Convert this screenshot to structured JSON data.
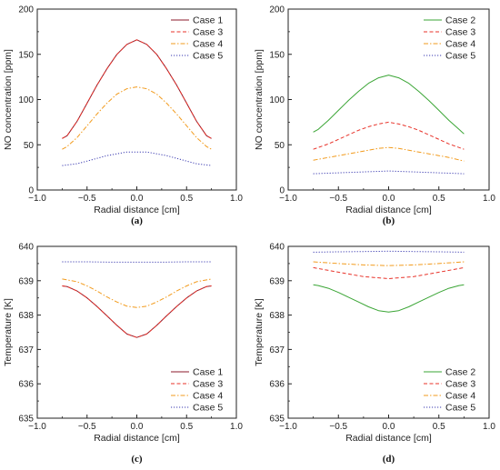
{
  "chart_data": [
    {
      "type": "line",
      "panel_label": "(a)",
      "xlabel": "Radial distance [cm]",
      "ylabel": "NO concentration [ppm]",
      "xlim": [
        -1.0,
        1.0
      ],
      "ylim": [
        0,
        200
      ],
      "xticks": [
        "−1.0",
        "−0.5",
        "0.0",
        "0.5",
        "1.0"
      ],
      "yticks": [
        "0",
        "50",
        "100",
        "150",
        "200"
      ],
      "legend_position": "top-right",
      "series": [
        {
          "name": "Case 1",
          "color": "#8b1a2b",
          "dash": "solid",
          "x": [
            -0.75,
            -0.7,
            -0.6,
            -0.5,
            -0.4,
            -0.3,
            -0.2,
            -0.1,
            0.0,
            0.1,
            0.2,
            0.3,
            0.4,
            0.5,
            0.6,
            0.7,
            0.75
          ],
          "y": [
            57,
            60,
            76,
            96,
            116,
            134,
            150,
            161,
            166,
            161,
            150,
            134,
            116,
            96,
            76,
            60,
            57
          ]
        },
        {
          "name": "Case 3",
          "color": "#e8332a",
          "dash": "dashed",
          "x": [
            -0.75,
            -0.7,
            -0.6,
            -0.5,
            -0.4,
            -0.3,
            -0.2,
            -0.1,
            0.0,
            0.1,
            0.2,
            0.3,
            0.4,
            0.5,
            0.6,
            0.7,
            0.75
          ],
          "y": [
            57,
            60,
            76,
            96,
            116,
            134,
            150,
            161,
            166,
            161,
            150,
            134,
            116,
            96,
            76,
            60,
            57
          ]
        },
        {
          "name": "Case 4",
          "color": "#f29b1d",
          "dash": "dashdot",
          "x": [
            -0.75,
            -0.7,
            -0.6,
            -0.5,
            -0.4,
            -0.3,
            -0.2,
            -0.1,
            0.0,
            0.1,
            0.2,
            0.3,
            0.4,
            0.5,
            0.6,
            0.7,
            0.75
          ],
          "y": [
            45,
            48,
            58,
            71,
            84,
            96,
            106,
            112,
            114,
            112,
            106,
            96,
            84,
            71,
            58,
            48,
            45
          ]
        },
        {
          "name": "Case 5",
          "color": "#3a3ab0",
          "dash": "dotted",
          "x": [
            -0.75,
            -0.6,
            -0.5,
            -0.4,
            -0.3,
            -0.2,
            -0.1,
            0.0,
            0.1,
            0.2,
            0.3,
            0.4,
            0.5,
            0.6,
            0.75
          ],
          "y": [
            27,
            29,
            32,
            35,
            38,
            40,
            42,
            42,
            42,
            40,
            38,
            35,
            32,
            29,
            27
          ]
        }
      ]
    },
    {
      "type": "line",
      "panel_label": "(b)",
      "xlabel": "Radial distance [cm]",
      "ylabel": "NO concentration [ppm]",
      "xlim": [
        -1.0,
        1.0
      ],
      "ylim": [
        0,
        200
      ],
      "xticks": [
        "−1.0",
        "−0.5",
        "0.0",
        "0.5",
        "1.0"
      ],
      "yticks": [
        "0",
        "50",
        "100",
        "150",
        "200"
      ],
      "legend_position": "top-right",
      "series": [
        {
          "name": "Case 2",
          "color": "#3aa535",
          "dash": "solid",
          "x": [
            -0.75,
            -0.7,
            -0.6,
            -0.5,
            -0.4,
            -0.3,
            -0.2,
            -0.1,
            0.0,
            0.1,
            0.2,
            0.3,
            0.4,
            0.5,
            0.6,
            0.7,
            0.75
          ],
          "y": [
            64,
            67,
            77,
            88,
            99,
            109,
            118,
            124,
            127,
            124,
            118,
            109,
            99,
            88,
            77,
            67,
            62
          ]
        },
        {
          "name": "Case 3",
          "color": "#e8332a",
          "dash": "dashed",
          "x": [
            -0.75,
            -0.6,
            -0.5,
            -0.4,
            -0.3,
            -0.2,
            -0.1,
            0.0,
            0.1,
            0.2,
            0.3,
            0.4,
            0.5,
            0.6,
            0.75
          ],
          "y": [
            45,
            51,
            56,
            61,
            66,
            70,
            73,
            75,
            73,
            70,
            66,
            61,
            56,
            51,
            45
          ]
        },
        {
          "name": "Case 4",
          "color": "#f29b1d",
          "dash": "dashdot",
          "x": [
            -0.75,
            -0.6,
            -0.5,
            -0.4,
            -0.3,
            -0.2,
            -0.1,
            0.0,
            0.1,
            0.2,
            0.3,
            0.4,
            0.5,
            0.6,
            0.75
          ],
          "y": [
            33,
            36,
            38,
            40,
            42,
            44,
            46,
            47,
            46,
            44,
            42,
            40,
            38,
            36,
            32
          ]
        },
        {
          "name": "Case 5",
          "color": "#3a3ab0",
          "dash": "dotted",
          "x": [
            -0.75,
            -0.5,
            -0.25,
            0.0,
            0.25,
            0.5,
            0.75
          ],
          "y": [
            18,
            19,
            20,
            21,
            20,
            19,
            18
          ]
        }
      ]
    },
    {
      "type": "line",
      "panel_label": "(c)",
      "xlabel": "Radial distance [cm]",
      "ylabel": "Temperature [K]",
      "xlim": [
        -1.0,
        1.0
      ],
      "ylim": [
        635,
        640
      ],
      "xticks": [
        "−1.0",
        "−0.5",
        "0.0",
        "0.5",
        "1.0"
      ],
      "yticks": [
        "635",
        "636",
        "637",
        "638",
        "639",
        "640"
      ],
      "legend_position": "bottom-right",
      "series": [
        {
          "name": "Case 1",
          "color": "#8b1a2b",
          "dash": "solid",
          "x": [
            -0.75,
            -0.7,
            -0.6,
            -0.5,
            -0.4,
            -0.3,
            -0.2,
            -0.1,
            0.0,
            0.1,
            0.2,
            0.3,
            0.4,
            0.5,
            0.6,
            0.7,
            0.75
          ],
          "y": [
            638.85,
            638.83,
            638.7,
            638.5,
            638.25,
            637.98,
            637.7,
            637.45,
            637.35,
            637.45,
            637.7,
            637.98,
            638.25,
            638.5,
            638.7,
            638.83,
            638.85
          ]
        },
        {
          "name": "Case 3",
          "color": "#e8332a",
          "dash": "dashed",
          "x": [
            -0.75,
            -0.7,
            -0.6,
            -0.5,
            -0.4,
            -0.3,
            -0.2,
            -0.1,
            0.0,
            0.1,
            0.2,
            0.3,
            0.4,
            0.5,
            0.6,
            0.7,
            0.75
          ],
          "y": [
            638.85,
            638.83,
            638.7,
            638.5,
            638.25,
            637.98,
            637.7,
            637.45,
            637.35,
            637.45,
            637.7,
            637.98,
            638.25,
            638.5,
            638.7,
            638.83,
            638.85
          ]
        },
        {
          "name": "Case 4",
          "color": "#f29b1d",
          "dash": "dashdot",
          "x": [
            -0.75,
            -0.6,
            -0.5,
            -0.4,
            -0.3,
            -0.2,
            -0.1,
            0.0,
            0.1,
            0.2,
            0.3,
            0.4,
            0.5,
            0.6,
            0.75
          ],
          "y": [
            639.05,
            638.97,
            638.85,
            638.7,
            638.53,
            638.38,
            638.26,
            638.22,
            638.26,
            638.38,
            638.53,
            638.7,
            638.85,
            638.97,
            639.05
          ]
        },
        {
          "name": "Case 5",
          "color": "#3a3ab0",
          "dash": "dotted",
          "x": [
            -0.75,
            -0.5,
            -0.25,
            0.0,
            0.25,
            0.5,
            0.75
          ],
          "y": [
            639.55,
            639.55,
            639.54,
            639.54,
            639.54,
            639.55,
            639.55
          ]
        }
      ]
    },
    {
      "type": "line",
      "panel_label": "(d)",
      "xlabel": "Radial distance [cm]",
      "ylabel": "Temperature [K]",
      "xlim": [
        -1.0,
        1.0
      ],
      "ylim": [
        635,
        640
      ],
      "xticks": [
        "−1.0",
        "−0.5",
        "0.0",
        "0.5",
        "1.0"
      ],
      "yticks": [
        "635",
        "636",
        "637",
        "638",
        "639",
        "640"
      ],
      "legend_position": "bottom-right",
      "series": [
        {
          "name": "Case 2",
          "color": "#3aa535",
          "dash": "solid",
          "x": [
            -0.75,
            -0.7,
            -0.6,
            -0.5,
            -0.4,
            -0.3,
            -0.2,
            -0.1,
            0.0,
            0.1,
            0.2,
            0.3,
            0.4,
            0.5,
            0.6,
            0.7,
            0.75
          ],
          "y": [
            638.88,
            638.86,
            638.78,
            638.66,
            638.52,
            638.38,
            638.24,
            638.13,
            638.09,
            638.13,
            638.24,
            638.38,
            638.52,
            638.66,
            638.78,
            638.86,
            638.88
          ]
        },
        {
          "name": "Case 3",
          "color": "#e8332a",
          "dash": "dashed",
          "x": [
            -0.75,
            -0.5,
            -0.25,
            0.0,
            0.25,
            0.5,
            0.75
          ],
          "y": [
            639.38,
            639.25,
            639.12,
            639.06,
            639.12,
            639.25,
            639.38
          ]
        },
        {
          "name": "Case 4",
          "color": "#f29b1d",
          "dash": "dashdot",
          "x": [
            -0.75,
            -0.5,
            -0.25,
            0.0,
            0.25,
            0.5,
            0.75
          ],
          "y": [
            639.55,
            639.5,
            639.46,
            639.44,
            639.46,
            639.5,
            639.55
          ]
        },
        {
          "name": "Case 5",
          "color": "#3a3ab0",
          "dash": "dotted",
          "x": [
            -0.75,
            -0.5,
            -0.25,
            0.0,
            0.25,
            0.5,
            0.75
          ],
          "y": [
            639.83,
            639.84,
            639.85,
            639.86,
            639.85,
            639.84,
            639.83
          ]
        }
      ]
    }
  ]
}
